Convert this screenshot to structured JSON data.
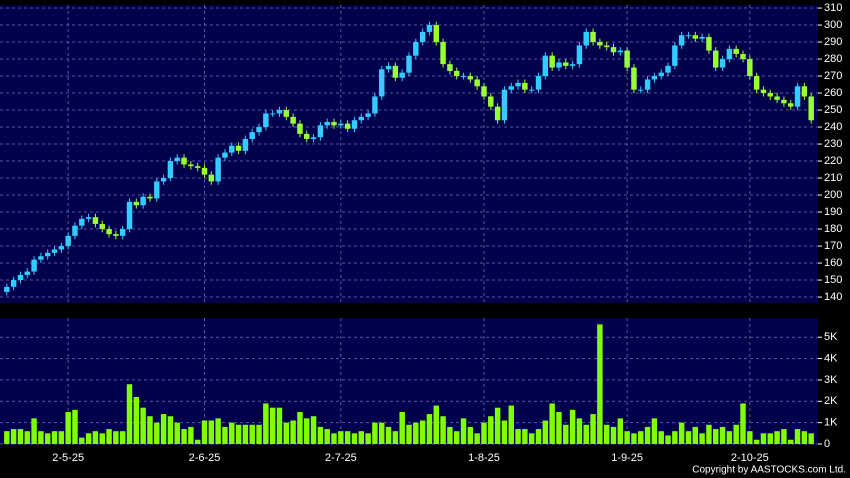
{
  "chart_data": [
    {
      "type": "candlestick",
      "up_color": "#33ccff",
      "down_color": "#99ff33",
      "background": "#00004d",
      "grid": true,
      "xlim": [
        -1,
        119
      ],
      "ylim": [
        136.5,
        311.8
      ],
      "yticks": [
        140,
        150,
        160,
        170,
        180,
        190,
        200,
        210,
        220,
        230,
        240,
        250,
        260,
        270,
        280,
        290,
        300,
        310
      ],
      "open": [
        143,
        146,
        150,
        153,
        155,
        162,
        164,
        166,
        168,
        170,
        176,
        182,
        186,
        187,
        183,
        180,
        177,
        176,
        180,
        196,
        194,
        199,
        198,
        208,
        210,
        220,
        222,
        218,
        217,
        216,
        212,
        208,
        222,
        225,
        229,
        226,
        233,
        237,
        240,
        248,
        248,
        250,
        246,
        242,
        236,
        233,
        234,
        241,
        243,
        241,
        242,
        239,
        244,
        246,
        248,
        258,
        274,
        276,
        269,
        272,
        282,
        290,
        296,
        300,
        290,
        277,
        273,
        270,
        270,
        268,
        264,
        258,
        252,
        244,
        262,
        264,
        266,
        262,
        262,
        270,
        282,
        275,
        278,
        276,
        277,
        288,
        296,
        290,
        288,
        287,
        284,
        285,
        275,
        262,
        262,
        268,
        270,
        272,
        276,
        288,
        294,
        294,
        292,
        293,
        285,
        275,
        280,
        286,
        283,
        280,
        270,
        262,
        260,
        258,
        256,
        254,
        252,
        264,
        258
      ],
      "high": [
        148,
        152,
        155,
        157,
        164,
        166,
        168,
        170,
        172,
        178,
        184,
        188,
        189,
        189,
        185,
        182,
        179,
        182,
        198,
        198,
        201,
        201,
        210,
        212,
        222,
        224,
        224,
        220,
        219,
        218,
        214,
        224,
        227,
        231,
        231,
        235,
        239,
        242,
        250,
        250,
        252,
        252,
        248,
        244,
        238,
        236,
        243,
        245,
        245,
        244,
        244,
        246,
        248,
        250,
        260,
        276,
        278,
        278,
        274,
        284,
        292,
        298,
        302,
        302,
        292,
        279,
        275,
        272,
        272,
        270,
        266,
        260,
        254,
        264,
        266,
        268,
        268,
        264,
        272,
        284,
        284,
        280,
        280,
        279,
        290,
        298,
        298,
        292,
        290,
        289,
        287,
        287,
        277,
        264,
        270,
        272,
        274,
        278,
        290,
        296,
        296,
        296,
        295,
        295,
        287,
        282,
        288,
        288,
        285,
        282,
        272,
        264,
        262,
        260,
        258,
        256,
        266,
        266,
        260
      ],
      "low": [
        141,
        144,
        148,
        151,
        153,
        160,
        162,
        164,
        166,
        168,
        174,
        180,
        184,
        181,
        178,
        175,
        174,
        174,
        178,
        192,
        192,
        196,
        196,
        206,
        208,
        218,
        216,
        215,
        214,
        210,
        206,
        206,
        220,
        223,
        224,
        224,
        231,
        235,
        238,
        246,
        246,
        244,
        240,
        234,
        231,
        231,
        232,
        239,
        239,
        239,
        237,
        237,
        242,
        244,
        246,
        256,
        272,
        267,
        267,
        270,
        280,
        288,
        294,
        288,
        275,
        271,
        268,
        268,
        266,
        262,
        256,
        250,
        242,
        242,
        260,
        262,
        260,
        260,
        260,
        268,
        273,
        273,
        274,
        274,
        275,
        286,
        288,
        286,
        285,
        282,
        282,
        273,
        260,
        260,
        260,
        266,
        268,
        270,
        274,
        286,
        292,
        290,
        290,
        283,
        273,
        273,
        278,
        281,
        278,
        268,
        260,
        258,
        256,
        254,
        252,
        250,
        250,
        256,
        242
      ],
      "close": [
        146,
        150,
        153,
        155,
        162,
        164,
        166,
        168,
        170,
        176,
        182,
        186,
        187,
        183,
        180,
        177,
        176,
        180,
        196,
        194,
        199,
        198,
        208,
        210,
        220,
        222,
        218,
        217,
        216,
        212,
        208,
        222,
        225,
        229,
        226,
        233,
        237,
        240,
        248,
        248,
        250,
        246,
        242,
        236,
        233,
        234,
        241,
        243,
        241,
        242,
        239,
        244,
        246,
        248,
        258,
        274,
        276,
        269,
        272,
        282,
        290,
        296,
        300,
        290,
        277,
        273,
        270,
        270,
        268,
        264,
        258,
        252,
        244,
        262,
        264,
        266,
        262,
        262,
        270,
        282,
        275,
        278,
        276,
        277,
        288,
        296,
        290,
        288,
        287,
        284,
        285,
        275,
        262,
        262,
        268,
        270,
        272,
        276,
        288,
        294,
        294,
        292,
        293,
        285,
        275,
        280,
        286,
        283,
        280,
        270,
        262,
        260,
        258,
        256,
        254,
        252,
        264,
        258,
        244
      ]
    },
    {
      "type": "bar",
      "color": "#80ff00",
      "background": "#00004d",
      "grid": true,
      "xlim": [
        -1,
        119
      ],
      "xticks": [
        {
          "value": 9,
          "label": "2-5-25"
        },
        {
          "value": 29,
          "label": "2-6-25"
        },
        {
          "value": 49,
          "label": "2-7-25"
        },
        {
          "value": 70,
          "label": "1-8-25"
        },
        {
          "value": 91,
          "label": "1-9-25"
        },
        {
          "value": 109,
          "label": "2-10-25"
        }
      ],
      "ylim": [
        0,
        5.9
      ],
      "yticks": [
        0,
        {
          "value": 1,
          "label": "1K"
        },
        {
          "value": 2,
          "label": "2K"
        },
        {
          "value": 3,
          "label": "3K"
        },
        {
          "value": 4,
          "label": "4K"
        },
        {
          "value": 5,
          "label": "5K"
        }
      ],
      "values": [
        0.6,
        0.7,
        0.7,
        0.6,
        1.2,
        0.6,
        0.5,
        0.6,
        0.6,
        1.5,
        1.6,
        0.3,
        0.5,
        0.6,
        0.5,
        0.7,
        0.6,
        0.6,
        2.8,
        2.2,
        1.7,
        1.3,
        1.0,
        1.4,
        1.3,
        1.0,
        0.7,
        0.8,
        0.2,
        1.1,
        1.1,
        1.2,
        0.8,
        1.0,
        0.9,
        0.9,
        0.9,
        0.9,
        1.9,
        1.7,
        1.7,
        1.0,
        1.1,
        1.5,
        1.2,
        1.3,
        0.8,
        0.7,
        0.5,
        0.6,
        0.6,
        0.5,
        0.6,
        0.5,
        1.0,
        1.0,
        0.8,
        0.6,
        1.5,
        0.9,
        1.0,
        1.1,
        1.4,
        1.8,
        1.3,
        0.8,
        0.6,
        1.2,
        0.8,
        0.5,
        1.0,
        1.3,
        1.7,
        1.1,
        1.8,
        0.7,
        0.7,
        0.5,
        0.7,
        1.1,
        1.9,
        1.5,
        0.9,
        1.6,
        1.2,
        0.9,
        1.4,
        5.6,
        0.9,
        0.8,
        1.2,
        0.6,
        0.5,
        0.6,
        0.8,
        1.2,
        0.6,
        0.4,
        0.6,
        1.0,
        0.6,
        0.8,
        0.5,
        0.9,
        0.7,
        0.8,
        0.6,
        0.9,
        1.9,
        0.6,
        0.2,
        0.5,
        0.5,
        0.6,
        0.7,
        0.2,
        0.7,
        0.6,
        0.5
      ]
    }
  ],
  "copyright": "Copyright by AASTOCKS.com Ltd."
}
